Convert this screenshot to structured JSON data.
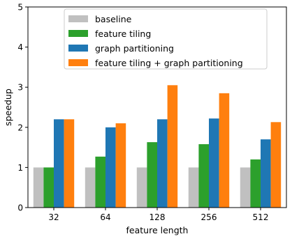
{
  "chart_data": {
    "type": "bar",
    "xlabel": "feature length",
    "ylabel": "speedup",
    "ylim": [
      0,
      5
    ],
    "yticks": [
      0,
      1,
      2,
      3,
      4,
      5
    ],
    "categories": [
      "32",
      "64",
      "128",
      "256",
      "512"
    ],
    "series": [
      {
        "name": "baseline",
        "color": "#c0c0c0",
        "values": [
          1.0,
          1.0,
          1.0,
          1.0,
          1.0
        ]
      },
      {
        "name": "feature tiling",
        "color": "#2ca02c",
        "values": [
          1.0,
          1.27,
          1.63,
          1.58,
          1.2
        ]
      },
      {
        "name": "graph partitioning",
        "color": "#1f77b4",
        "values": [
          2.2,
          2.0,
          2.2,
          2.22,
          1.7
        ]
      },
      {
        "name": "feature tiling + graph partitioning",
        "color": "#ff7f0e",
        "values": [
          2.2,
          2.1,
          3.05,
          2.85,
          2.13
        ]
      }
    ],
    "legend_position": "top-center",
    "grid": false
  }
}
